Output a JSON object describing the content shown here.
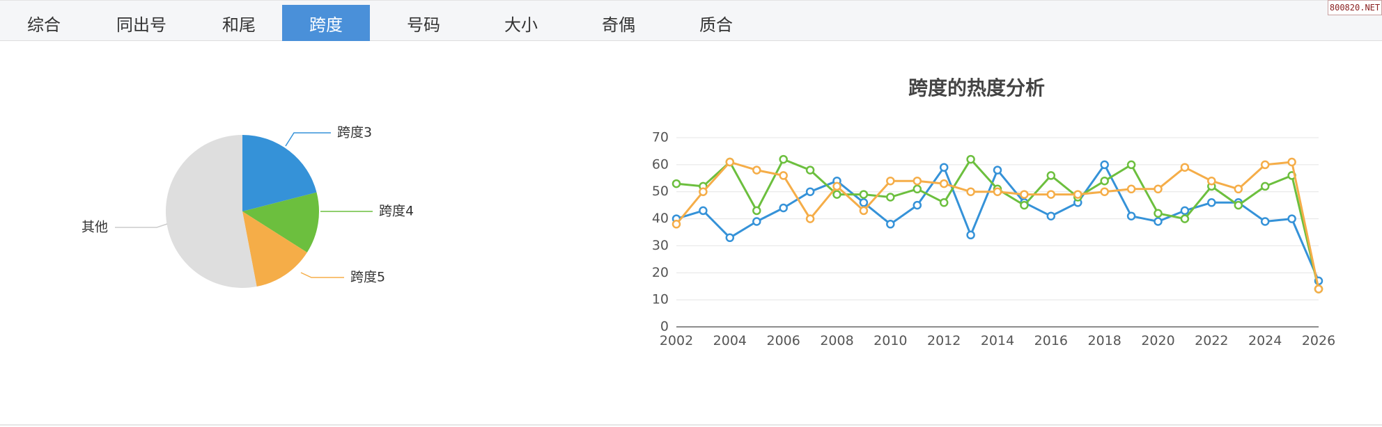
{
  "tabs": [
    {
      "label": "综合"
    },
    {
      "label": "同出号"
    },
    {
      "label": "和尾"
    },
    {
      "label": "跨度",
      "active": true
    },
    {
      "label": "号码"
    },
    {
      "label": "大小"
    },
    {
      "label": "奇偶"
    },
    {
      "label": "质合"
    }
  ],
  "watermark": "800820.NET",
  "colors": {
    "blue": "#3592d8",
    "green": "#6cbf3e",
    "orange": "#f5ad48",
    "other": "#dedede",
    "tab_active": "#4a90d9"
  },
  "pie_chart": {
    "slices": [
      {
        "label": "跨度3",
        "percent": 21,
        "color": "#3592d8"
      },
      {
        "label": "跨度4",
        "percent": 13,
        "color": "#6cbf3e"
      },
      {
        "label": "跨度5",
        "percent": 13,
        "color": "#f5ad48"
      },
      {
        "label": "其他",
        "percent": 53,
        "color": "#dedede"
      }
    ]
  },
  "chart_data": {
    "type": "line",
    "title": "跨度的热度分析",
    "xlabel": "",
    "ylabel": "",
    "x": [
      2002,
      2003,
      2004,
      2005,
      2006,
      2007,
      2008,
      2009,
      2010,
      2011,
      2012,
      2013,
      2014,
      2015,
      2016,
      2017,
      2018,
      2019,
      2020,
      2021,
      2022,
      2023,
      2024,
      2025,
      2026
    ],
    "xticks": [
      "2002",
      "2004",
      "2006",
      "2008",
      "2010",
      "2012",
      "2014",
      "2016",
      "2018",
      "2020",
      "2022",
      "2024",
      "2026"
    ],
    "ylim": [
      0,
      70
    ],
    "yticks": [
      0,
      10,
      20,
      30,
      40,
      50,
      60,
      70
    ],
    "grid": true,
    "legend": "none",
    "series": [
      {
        "color": "#3592d8",
        "values": [
          40,
          43,
          33,
          39,
          44,
          50,
          54,
          46,
          38,
          45,
          59,
          34,
          58,
          46,
          41,
          46,
          60,
          41,
          39,
          43,
          46,
          46,
          39,
          40,
          17
        ]
      },
      {
        "color": "#6cbf3e",
        "values": [
          53,
          52,
          61,
          43,
          62,
          58,
          49,
          49,
          48,
          51,
          46,
          62,
          51,
          45,
          56,
          48,
          54,
          60,
          42,
          40,
          52,
          45,
          52,
          56,
          14
        ]
      },
      {
        "color": "#f5ad48",
        "values": [
          38,
          50,
          61,
          58,
          56,
          40,
          52,
          43,
          54,
          54,
          53,
          50,
          50,
          49,
          49,
          49,
          50,
          51,
          51,
          59,
          54,
          51,
          60,
          61,
          14
        ]
      }
    ]
  }
}
